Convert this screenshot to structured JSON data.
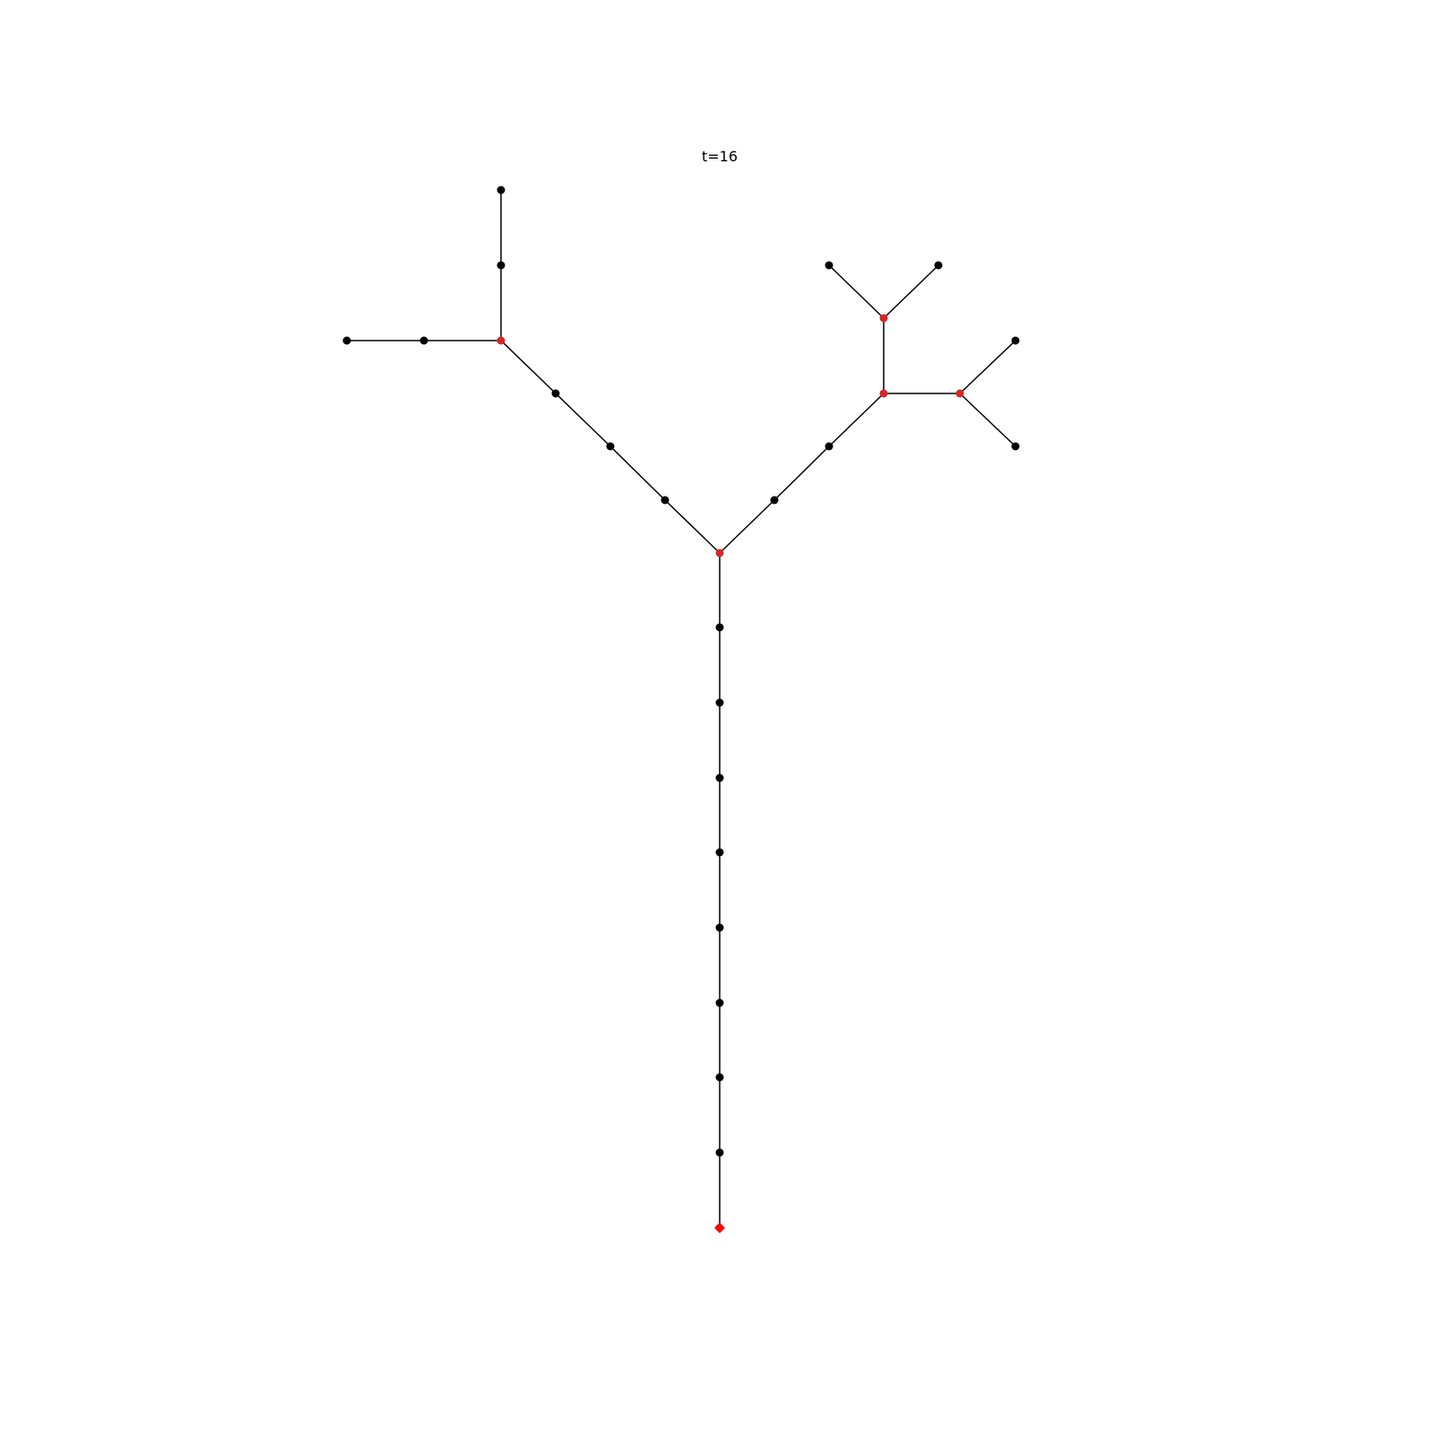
{
  "title": "t=16",
  "colors": {
    "edge": "#000000",
    "node": "#000000",
    "branch_node": "#d62728",
    "root_node": "#ff0000"
  },
  "nodes": [
    {
      "id": "n0",
      "kind": "root"
    },
    {
      "id": "n1",
      "kind": "normal"
    },
    {
      "id": "n2",
      "kind": "normal"
    },
    {
      "id": "n3",
      "kind": "normal"
    },
    {
      "id": "n4",
      "kind": "normal"
    },
    {
      "id": "n5",
      "kind": "normal"
    },
    {
      "id": "n6",
      "kind": "normal"
    },
    {
      "id": "n7",
      "kind": "normal"
    },
    {
      "id": "n8",
      "kind": "normal"
    },
    {
      "id": "n9",
      "kind": "branch"
    },
    {
      "id": "n10",
      "kind": "normal"
    },
    {
      "id": "n11",
      "kind": "normal"
    },
    {
      "id": "n12",
      "kind": "normal"
    },
    {
      "id": "n13",
      "kind": "branch"
    },
    {
      "id": "n14",
      "kind": "normal"
    },
    {
      "id": "n15",
      "kind": "normal"
    },
    {
      "id": "n16",
      "kind": "normal"
    },
    {
      "id": "n17",
      "kind": "normal"
    },
    {
      "id": "n18",
      "kind": "normal"
    },
    {
      "id": "n19",
      "kind": "normal"
    },
    {
      "id": "n20",
      "kind": "branch"
    },
    {
      "id": "n21",
      "kind": "branch"
    },
    {
      "id": "n22",
      "kind": "normal"
    },
    {
      "id": "n23",
      "kind": "normal"
    },
    {
      "id": "n24",
      "kind": "branch"
    },
    {
      "id": "n25",
      "kind": "normal"
    },
    {
      "id": "n26",
      "kind": "normal"
    }
  ],
  "edges": [
    [
      "n0",
      "n1"
    ],
    [
      "n1",
      "n2"
    ],
    [
      "n2",
      "n3"
    ],
    [
      "n3",
      "n4"
    ],
    [
      "n4",
      "n5"
    ],
    [
      "n5",
      "n6"
    ],
    [
      "n6",
      "n7"
    ],
    [
      "n7",
      "n8"
    ],
    [
      "n8",
      "n9"
    ],
    [
      "n9",
      "n10"
    ],
    [
      "n10",
      "n11"
    ],
    [
      "n11",
      "n12"
    ],
    [
      "n12",
      "n13"
    ],
    [
      "n13",
      "n14"
    ],
    [
      "n14",
      "n15"
    ],
    [
      "n13",
      "n16"
    ],
    [
      "n16",
      "n17"
    ],
    [
      "n9",
      "n18"
    ],
    [
      "n18",
      "n19"
    ],
    [
      "n19",
      "n20"
    ],
    [
      "n20",
      "n21"
    ],
    [
      "n21",
      "n22"
    ],
    [
      "n21",
      "n23"
    ],
    [
      "n20",
      "n24"
    ],
    [
      "n24",
      "n25"
    ],
    [
      "n24",
      "n26"
    ]
  ]
}
